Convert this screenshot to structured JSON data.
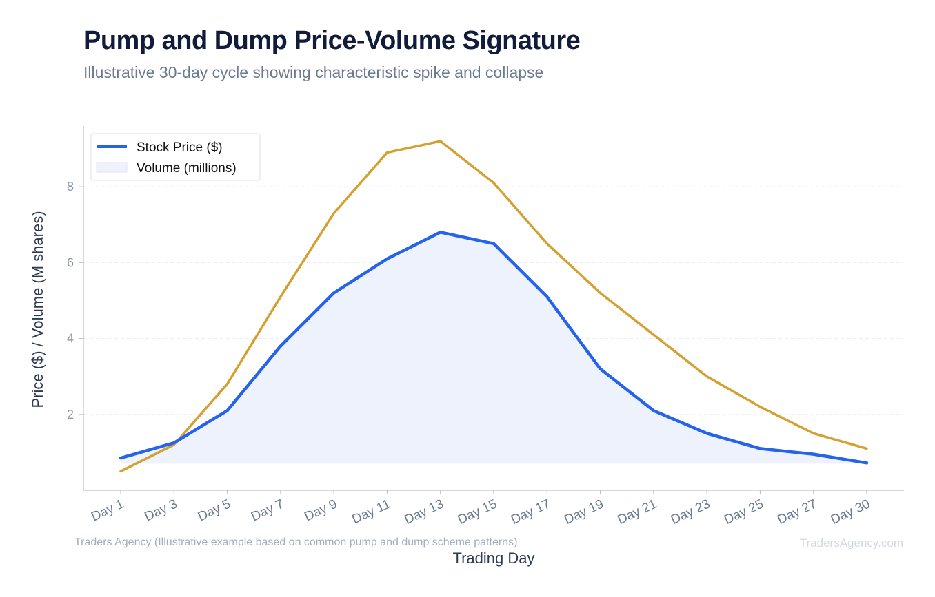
{
  "header": {
    "title": "Pump and Dump Price-Volume Signature",
    "subtitle": "Illustrative 30-day cycle showing characteristic spike and collapse"
  },
  "footer": {
    "source": "Traders Agency (Illustrative example based on common pump and dump scheme patterns)",
    "brand": "TradersAgency.com"
  },
  "chart_data": {
    "type": "line",
    "categories": [
      "Day 1",
      "Day 3",
      "Day 5",
      "Day 7",
      "Day 9",
      "Day 11",
      "Day 13",
      "Day 15",
      "Day 17",
      "Day 19",
      "Day 21",
      "Day 23",
      "Day 25",
      "Day 27",
      "Day 30"
    ],
    "series": [
      {
        "name": "Stock Price ($)",
        "style": "line",
        "color": "#2563eb",
        "values": [
          0.85,
          1.25,
          2.1,
          3.8,
          5.2,
          6.1,
          6.8,
          6.5,
          5.1,
          3.2,
          2.1,
          1.5,
          1.1,
          0.95,
          0.72
        ]
      },
      {
        "name": "Volume (millions)",
        "style": "area",
        "color": "#d4a030",
        "fill": "#eef2fc",
        "values": [
          0.5,
          1.2,
          2.8,
          5.1,
          7.3,
          8.9,
          9.2,
          8.1,
          6.5,
          5.2,
          4.1,
          3.0,
          2.2,
          1.5,
          1.1
        ]
      }
    ],
    "xlabel": "Trading Day",
    "ylabel": "Price ($) / Volume (M shares)",
    "ylim": [
      0,
      9.6
    ],
    "yticks": [
      2,
      4,
      6,
      8
    ],
    "area_baseline": 0.7,
    "grid": "horizontal-dashed",
    "legend_position": "top-left"
  }
}
